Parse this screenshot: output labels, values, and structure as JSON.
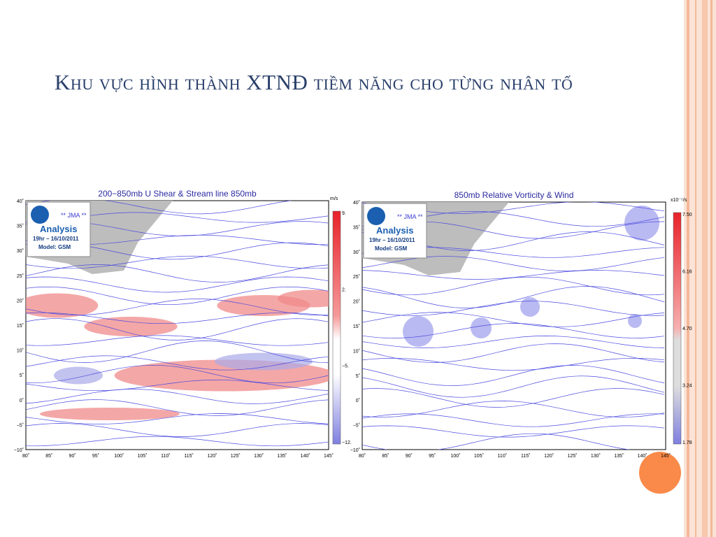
{
  "header": {
    "title": "Khu vực hình thành XTNĐ tiềm năng cho từng nhân tố"
  },
  "maps": [
    {
      "title": "200−850mb U Shear & Stream line 850mb",
      "badge": [
        "** JMA **",
        "Analysis",
        "19hr – 16/10/2011",
        "Model: GSM"
      ],
      "lat_ticks": [
        "40˚",
        "35˚",
        "30˚",
        "25˚",
        "20˚",
        "15˚",
        "10˚",
        "5˚",
        "0˚",
        "−5˚",
        "−10˚"
      ],
      "lon_ticks": [
        "80˚",
        "85˚",
        "90˚",
        "95˚",
        "100˚",
        "105˚",
        "110˚",
        "115˚",
        "120˚",
        "125˚",
        "130˚",
        "135˚",
        "140˚",
        "145˚"
      ],
      "colorbar": {
        "unit": "m/s",
        "labels": [
          "9.",
          "2.",
          "−5.",
          "−12."
        ]
      }
    },
    {
      "title": "850mb Relative Vorticity & Wind",
      "badge": [
        "** JMA **",
        "Analysis",
        "19hr – 16/10/2011",
        "Model: GSM"
      ],
      "lat_ticks": [
        "40˚",
        "35˚",
        "30˚",
        "25˚",
        "20˚",
        "15˚",
        "10˚",
        "5˚",
        "0˚",
        "−5˚",
        "−10˚"
      ],
      "lon_ticks": [
        "80˚",
        "85˚",
        "90˚",
        "95˚",
        "100˚",
        "105˚",
        "110˚",
        "115˚",
        "120˚",
        "125˚",
        "130˚",
        "135˚",
        "140˚",
        "145˚"
      ],
      "colorbar": {
        "unit": "x10⁻⁵/s",
        "labels": [
          "7.50",
          "6.16",
          "4.70",
          "3.24",
          "1.78"
        ]
      }
    }
  ]
}
